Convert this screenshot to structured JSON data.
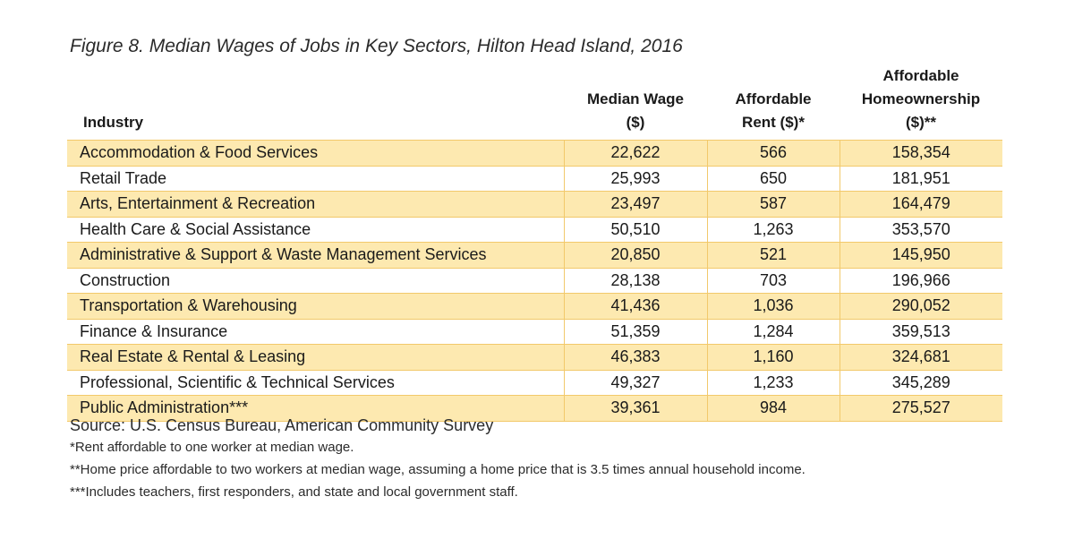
{
  "title": "Figure 8. Median Wages of Jobs in Key Sectors, Hilton Head Island, 2016",
  "chart_data": {
    "type": "table",
    "title": "Figure 8. Median Wages of Jobs in Key Sectors, Hilton Head Island, 2016",
    "columns": [
      {
        "lines": [
          "Industry"
        ]
      },
      {
        "lines": [
          "Median Wage",
          "($)"
        ]
      },
      {
        "lines": [
          "Affordable",
          "Rent ($)*"
        ]
      },
      {
        "lines": [
          "Affordable",
          "Homeownership",
          "($)**"
        ]
      }
    ],
    "rows": [
      [
        "Accommodation & Food Services",
        "22,622",
        "566",
        "158,354"
      ],
      [
        "Retail Trade",
        "25,993",
        "650",
        "181,951"
      ],
      [
        "Arts, Entertainment & Recreation",
        "23,497",
        "587",
        "164,479"
      ],
      [
        "Health Care & Social Assistance",
        "50,510",
        "1,263",
        "353,570"
      ],
      [
        "Administrative & Support & Waste Management Services",
        "20,850",
        "521",
        "145,950"
      ],
      [
        "Construction",
        "28,138",
        "703",
        "196,966"
      ],
      [
        "Transportation & Warehousing",
        "41,436",
        "1,036",
        "290,052"
      ],
      [
        "Finance & Insurance",
        "51,359",
        "1,284",
        "359,513"
      ],
      [
        "Real Estate & Rental & Leasing",
        "46,383",
        "1,160",
        "324,681"
      ],
      [
        "Professional, Scientific & Technical Services",
        "49,327",
        "1,233",
        "345,289"
      ],
      [
        "Public Administration***",
        "39,361",
        "984",
        "275,527"
      ]
    ],
    "row_shading": "alternating",
    "shade_color": "#fde9b0",
    "border_color": "#f2c96b"
  },
  "source": "Source: U.S. Census Bureau, American Community Survey",
  "footnotes": [
    {
      "mark": "*",
      "text": "Rent affordable to one worker at median wage."
    },
    {
      "mark": "**",
      "text": "Home price affordable to two workers at median wage, assuming a home price that is 3.5 times annual household income."
    },
    {
      "mark": "***",
      "text": "Includes teachers, first responders, and state and local government staff."
    }
  ]
}
